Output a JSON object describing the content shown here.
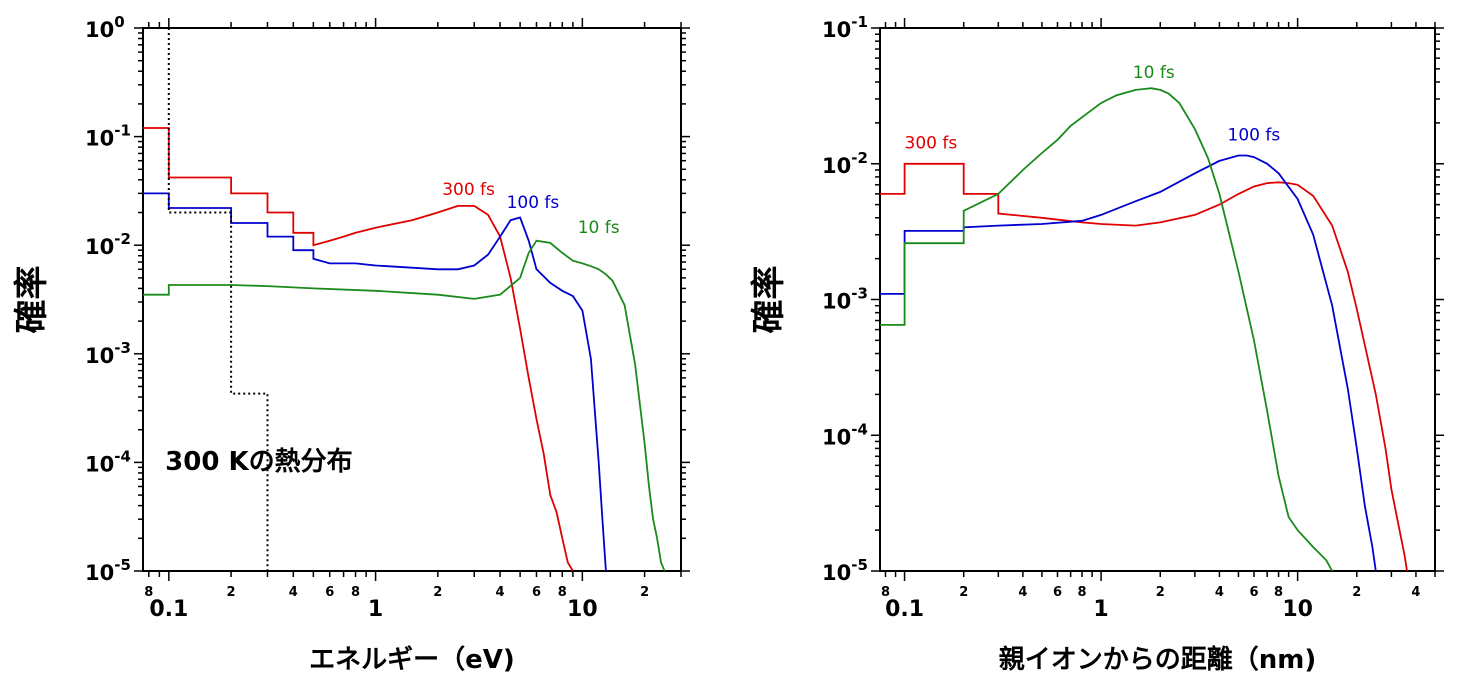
{
  "chart_data": [
    {
      "type": "line",
      "xscale": "log",
      "yscale": "log",
      "xlim": [
        0.075,
        30
      ],
      "ylim": [
        1e-05,
        1
      ],
      "xlabel": "エネルギー（eV)",
      "ylabel": "確率",
      "grid": false,
      "x_major_ticks": [
        {
          "value": 0.1,
          "label": "0.1"
        },
        {
          "value": 1,
          "label": "1"
        },
        {
          "value": 10,
          "label": "10"
        }
      ],
      "x_minor_tick_labels": [
        {
          "value": 0.08,
          "label": "8"
        },
        {
          "value": 0.2,
          "label": "2"
        },
        {
          "value": 0.4,
          "label": "4"
        },
        {
          "value": 0.6,
          "label": "6"
        },
        {
          "value": 0.8,
          "label": "8"
        },
        {
          "value": 2,
          "label": "2"
        },
        {
          "value": 4,
          "label": "4"
        },
        {
          "value": 6,
          "label": "6"
        },
        {
          "value": 8,
          "label": "8"
        },
        {
          "value": 20,
          "label": "2"
        }
      ],
      "y_ticks": [
        {
          "value": 1,
          "mant": "10",
          "exp": "0"
        },
        {
          "value": 0.1,
          "mant": "10",
          "exp": "-1"
        },
        {
          "value": 0.01,
          "mant": "10",
          "exp": "-2"
        },
        {
          "value": 0.001,
          "mant": "10",
          "exp": "-3"
        },
        {
          "value": 0.0001,
          "mant": "10",
          "exp": "-4"
        },
        {
          "value": 1e-05,
          "mant": "10",
          "exp": "-5"
        }
      ],
      "annotations": [
        {
          "text": "300 Kの熱分布",
          "x": 0.096,
          "y": 8.5e-05
        }
      ],
      "series": [
        {
          "name": "300 fs",
          "color": "#e00000",
          "dashed": false,
          "label_at": [
            2.1,
            0.029
          ],
          "x": [
            0.075,
            0.1,
            0.1,
            0.2,
            0.2,
            0.3,
            0.3,
            0.4,
            0.4,
            0.5,
            0.5,
            0.6,
            0.7,
            0.8,
            1.0,
            1.5,
            2.0,
            2.5,
            3.0,
            3.5,
            4.0,
            4.5,
            5.0,
            5.5,
            6.0,
            6.5,
            7.0,
            7.5,
            8.0,
            8.5,
            9.0
          ],
          "y": [
            0.12,
            0.12,
            0.042,
            0.042,
            0.03,
            0.03,
            0.02,
            0.02,
            0.013,
            0.013,
            0.01,
            0.011,
            0.012,
            0.013,
            0.0145,
            0.017,
            0.02,
            0.023,
            0.023,
            0.019,
            0.012,
            0.005,
            0.0017,
            0.0006,
            0.00025,
            0.00012,
            5e-05,
            3.5e-05,
            2e-05,
            1.2e-05,
            1e-05
          ]
        },
        {
          "name": "100 fs",
          "color": "#0000d0",
          "dashed": false,
          "label_at": [
            4.3,
            0.022
          ],
          "x": [
            0.075,
            0.1,
            0.1,
            0.2,
            0.2,
            0.3,
            0.3,
            0.4,
            0.4,
            0.5,
            0.5,
            0.6,
            0.8,
            1.0,
            1.5,
            2.0,
            2.5,
            3.0,
            3.5,
            4.0,
            4.5,
            5.0,
            5.5,
            6.0,
            7.0,
            8.0,
            9.0,
            10.0,
            11.0,
            12.0,
            12.5,
            13.0
          ],
          "y": [
            0.03,
            0.03,
            0.022,
            0.022,
            0.016,
            0.016,
            0.012,
            0.012,
            0.009,
            0.009,
            0.0075,
            0.0068,
            0.0068,
            0.0065,
            0.0062,
            0.006,
            0.006,
            0.0065,
            0.0082,
            0.012,
            0.017,
            0.018,
            0.011,
            0.006,
            0.0045,
            0.0038,
            0.0034,
            0.0025,
            0.0009,
            0.0001,
            3e-05,
            1e-05
          ]
        },
        {
          "name": "10 fs",
          "color": "#1a8a1a",
          "dashed": false,
          "label_at": [
            9.5,
            0.013
          ],
          "x": [
            0.075,
            0.1,
            0.1,
            0.2,
            0.3,
            0.5,
            1.0,
            2.0,
            3.0,
            4.0,
            5.0,
            5.5,
            6.0,
            7.0,
            8.0,
            9.0,
            10.0,
            11.0,
            12.0,
            13.0,
            14.0,
            16.0,
            18.0,
            20.0,
            21.0,
            22.0,
            23.0,
            24.0,
            25.0
          ],
          "y": [
            0.0035,
            0.0035,
            0.0043,
            0.0043,
            0.0042,
            0.004,
            0.0038,
            0.0035,
            0.0032,
            0.0035,
            0.005,
            0.0085,
            0.011,
            0.0105,
            0.0085,
            0.0072,
            0.0068,
            0.0064,
            0.006,
            0.0054,
            0.0047,
            0.0028,
            0.0008,
            0.00015,
            6e-05,
            3e-05,
            2e-05,
            1.2e-05,
            1e-05
          ]
        },
        {
          "name": "300 Kの熱分布",
          "color": "#000000",
          "dashed": true,
          "x": [
            0.1,
            0.1,
            0.2,
            0.2,
            0.3,
            0.3
          ],
          "y": [
            1,
            0.02,
            0.02,
            0.00043,
            0.00043,
            1e-05
          ]
        }
      ]
    },
    {
      "type": "line",
      "xscale": "log",
      "yscale": "log",
      "xlim": [
        0.075,
        50
      ],
      "ylim": [
        1e-05,
        0.1
      ],
      "xlabel": "親イオンからの距離（nm)",
      "ylabel": "確率",
      "grid": false,
      "x_major_ticks": [
        {
          "value": 0.1,
          "label": "0.1"
        },
        {
          "value": 1,
          "label": "1"
        },
        {
          "value": 10,
          "label": "10"
        }
      ],
      "x_minor_tick_labels": [
        {
          "value": 0.08,
          "label": "8"
        },
        {
          "value": 0.2,
          "label": "2"
        },
        {
          "value": 0.4,
          "label": "4"
        },
        {
          "value": 0.6,
          "label": "6"
        },
        {
          "value": 0.8,
          "label": "8"
        },
        {
          "value": 2,
          "label": "2"
        },
        {
          "value": 4,
          "label": "4"
        },
        {
          "value": 6,
          "label": "6"
        },
        {
          "value": 8,
          "label": "8"
        },
        {
          "value": 20,
          "label": "2"
        },
        {
          "value": 40,
          "label": "4"
        }
      ],
      "y_ticks": [
        {
          "value": 0.1,
          "mant": "10",
          "exp": "-1"
        },
        {
          "value": 0.01,
          "mant": "10",
          "exp": "-2"
        },
        {
          "value": 0.001,
          "mant": "10",
          "exp": "-3"
        },
        {
          "value": 0.0001,
          "mant": "10",
          "exp": "-4"
        },
        {
          "value": 1e-05,
          "mant": "10",
          "exp": "-5"
        }
      ],
      "series": [
        {
          "name": "300 fs",
          "color": "#e00000",
          "dashed": false,
          "label_at": [
            0.1,
            0.013
          ],
          "x": [
            0.075,
            0.1,
            0.1,
            0.2,
            0.2,
            0.3,
            0.3,
            0.5,
            0.8,
            1.0,
            1.5,
            2.0,
            3.0,
            4.0,
            5.0,
            6.0,
            7.0,
            8.0,
            9.0,
            10.0,
            12.0,
            15.0,
            18.0,
            20.0,
            25.0,
            28.0,
            30.0,
            33.0,
            35.0,
            36.0
          ],
          "y": [
            0.006,
            0.006,
            0.01,
            0.01,
            0.006,
            0.006,
            0.0043,
            0.004,
            0.0037,
            0.0036,
            0.0035,
            0.0037,
            0.0042,
            0.005,
            0.006,
            0.0068,
            0.0072,
            0.0073,
            0.0072,
            0.007,
            0.0058,
            0.0035,
            0.0016,
            0.00085,
            0.0002,
            8e-05,
            4e-05,
            2e-05,
            1.3e-05,
            1e-05
          ]
        },
        {
          "name": "100 fs",
          "color": "#0000d0",
          "dashed": false,
          "label_at": [
            4.4,
            0.0148
          ],
          "x": [
            0.075,
            0.1,
            0.1,
            0.2,
            0.2,
            0.3,
            0.5,
            0.8,
            1.0,
            1.5,
            2.0,
            3.0,
            4.0,
            5.0,
            5.5,
            6.0,
            7.0,
            8.0,
            10.0,
            12.0,
            15.0,
            18.0,
            20.0,
            22.0,
            24.0,
            25.0
          ],
          "y": [
            0.0011,
            0.0011,
            0.0032,
            0.0032,
            0.0034,
            0.0035,
            0.0036,
            0.0038,
            0.0042,
            0.0053,
            0.0062,
            0.0085,
            0.0105,
            0.0115,
            0.0115,
            0.0112,
            0.01,
            0.0085,
            0.0055,
            0.003,
            0.0009,
            0.00022,
            8e-05,
            3e-05,
            1.5e-05,
            1e-05
          ]
        },
        {
          "name": "10 fs",
          "color": "#1a8a1a",
          "dashed": false,
          "label_at": [
            1.45,
            0.043
          ],
          "x": [
            0.075,
            0.1,
            0.1,
            0.2,
            0.2,
            0.3,
            0.4,
            0.5,
            0.6,
            0.7,
            0.8,
            0.9,
            1.0,
            1.2,
            1.5,
            1.8,
            2.0,
            2.2,
            2.5,
            3.0,
            3.5,
            4.0,
            5.0,
            6.0,
            7.0,
            8.0,
            9.0,
            10.0,
            12.0,
            14.0,
            15.0
          ],
          "y": [
            0.00065,
            0.00065,
            0.0026,
            0.0026,
            0.0045,
            0.006,
            0.009,
            0.012,
            0.015,
            0.019,
            0.022,
            0.025,
            0.028,
            0.032,
            0.035,
            0.036,
            0.035,
            0.033,
            0.028,
            0.018,
            0.011,
            0.006,
            0.0016,
            0.0005,
            0.00015,
            5e-05,
            2.5e-05,
            2e-05,
            1.5e-05,
            1.2e-05,
            1e-05
          ]
        }
      ]
    }
  ]
}
